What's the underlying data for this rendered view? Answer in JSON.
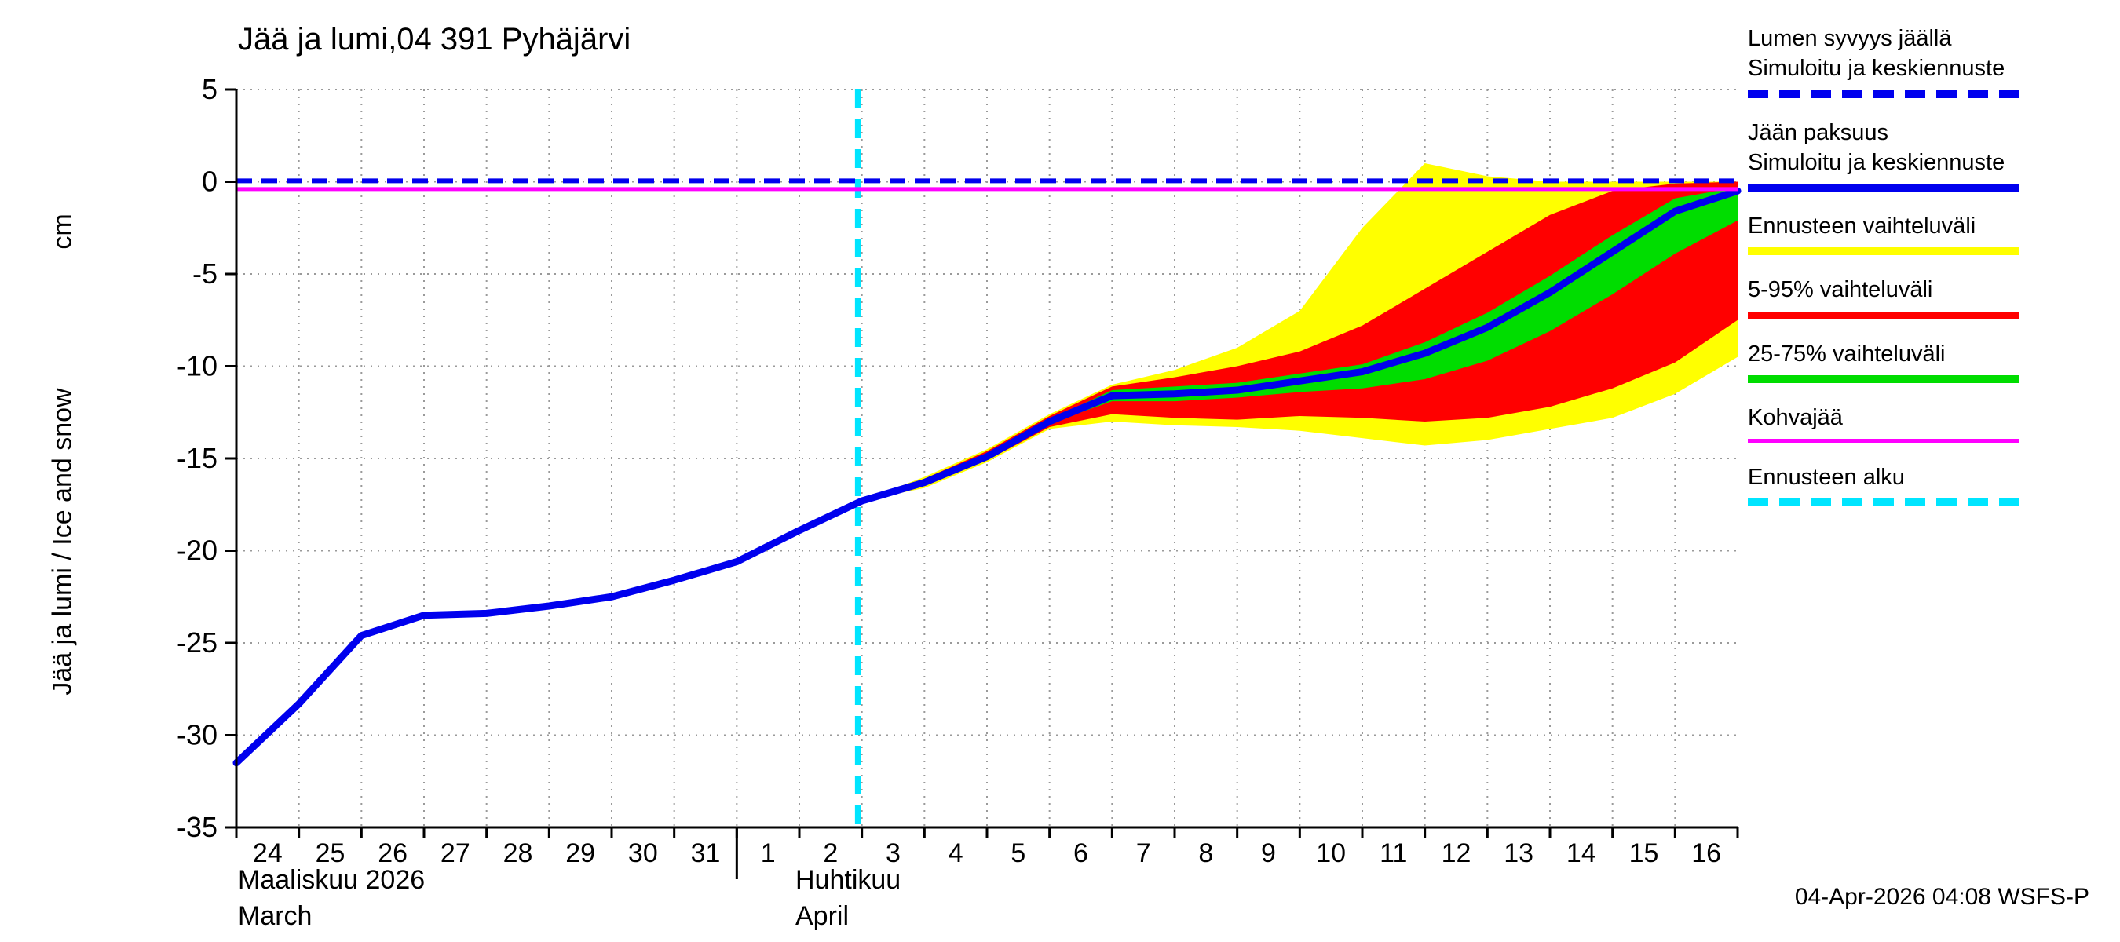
{
  "meta": {
    "title": "Jää ja lumi,04 391 Pyhäjärvi",
    "timestamp": "04-Apr-2026 04:08 WSFS-P"
  },
  "axes": {
    "y_label": "Jää ja lumi / Ice and snow",
    "y_unit": "cm",
    "y_ticks": [
      5,
      0,
      -5,
      -10,
      -15,
      -20,
      -25,
      -30,
      -35
    ],
    "x_day_labels": [
      "24",
      "25",
      "26",
      "27",
      "28",
      "29",
      "30",
      "31",
      "1",
      "2",
      "3",
      "4",
      "5",
      "6",
      "7",
      "8",
      "9",
      "10",
      "11",
      "12",
      "13",
      "14",
      "15",
      "16"
    ],
    "month_left_fi": "Maaliskuu 2026",
    "month_left_en": "March",
    "month_right_fi": "Huhtikuu",
    "month_right_en": "April"
  },
  "legend": [
    {
      "line1": "Lumen syvyys jäällä",
      "line2": "Simuloitu ja keskiennuste",
      "style": "blue-dashed"
    },
    {
      "line1": "Jään paksuus",
      "line2": "Simuloitu ja keskiennuste",
      "style": "blue-solid"
    },
    {
      "line1": "Ennusteen vaihteluväli",
      "style": "yellow-solid"
    },
    {
      "line1": "5-95% vaihteluväli",
      "style": "red-solid"
    },
    {
      "line1": "25-75% vaihteluväli",
      "style": "green-solid"
    },
    {
      "line1": "Kohvajää",
      "style": "magenta-thin"
    },
    {
      "line1": "Ennusteen alku",
      "style": "cyan-dashed"
    }
  ],
  "colors": {
    "blue": "#0000ee",
    "yellow": "#ffff00",
    "red": "#ff0000",
    "green": "#00dd00",
    "magenta": "#ff00ff",
    "cyan": "#00e5ff",
    "grid": "#9a9a9a"
  },
  "chart_data": {
    "type": "line",
    "title": "Jää ja lumi,04 391 Pyhäjärvi",
    "ylabel": "Jää ja lumi / Ice and snow (cm)",
    "ylim": [
      -35,
      5
    ],
    "x_axis_note": "day index: 0 = 24 March 2026, 24 = end of 16 April 2026",
    "forecast_start_x": 9.94,
    "snow_depth_line_y": 0.05,
    "kohvajaa_line_y": -0.4,
    "x": [
      0,
      1,
      2,
      3,
      4,
      5,
      6,
      7,
      8,
      9,
      10,
      11,
      12,
      13,
      14,
      15,
      16,
      17,
      18,
      19,
      20,
      21,
      22,
      23,
      24
    ],
    "series": [
      {
        "name": "Jään paksuus – simuloitu ja keskiennuste",
        "color": "blue",
        "values": [
          -31.5,
          -28.3,
          -24.6,
          -23.5,
          -23.4,
          -23.0,
          -22.5,
          -21.6,
          -20.6,
          -18.9,
          -17.3,
          -16.3,
          -14.9,
          -13.0,
          -11.6,
          -11.5,
          -11.3,
          -10.8,
          -10.3,
          -9.3,
          -7.9,
          -6.0,
          -3.8,
          -1.6,
          -0.5
        ]
      }
    ],
    "bands": [
      {
        "name": "Ennusteen vaihteluväli",
        "color": "yellow",
        "x": [
          10,
          11,
          12,
          13,
          14,
          15,
          16,
          17,
          18,
          19,
          20,
          21,
          22,
          23,
          24
        ],
        "top": [
          -17.3,
          -16.0,
          -14.5,
          -12.6,
          -11.0,
          -10.2,
          -9.0,
          -7.0,
          -2.5,
          1.0,
          0.3,
          0.0,
          0.0,
          0.0,
          0.0
        ],
        "bottom": [
          -17.3,
          -16.6,
          -15.2,
          -13.4,
          -13.0,
          -13.2,
          -13.3,
          -13.5,
          -13.9,
          -14.3,
          -14.0,
          -13.4,
          -12.8,
          -11.5,
          -9.5
        ]
      },
      {
        "name": "5-95% vaihteluväli",
        "color": "red",
        "x": [
          10,
          11,
          12,
          13,
          14,
          15,
          16,
          17,
          18,
          19,
          20,
          21,
          22,
          23,
          24
        ],
        "top": [
          -17.3,
          -16.1,
          -14.6,
          -12.7,
          -11.1,
          -10.6,
          -10.0,
          -9.2,
          -7.8,
          -5.8,
          -3.8,
          -1.8,
          -0.5,
          -0.1,
          0.0
        ],
        "bottom": [
          -17.3,
          -16.5,
          -15.1,
          -13.3,
          -12.6,
          -12.8,
          -12.9,
          -12.7,
          -12.8,
          -13.0,
          -12.8,
          -12.2,
          -11.2,
          -9.8,
          -7.5
        ]
      },
      {
        "name": "25-75% vaihteluväli",
        "color": "green",
        "x": [
          13,
          14,
          15,
          16,
          17,
          18,
          19,
          20,
          21,
          22,
          23,
          24
        ],
        "top": [
          -12.9,
          -11.3,
          -11.1,
          -10.9,
          -10.4,
          -9.9,
          -8.7,
          -7.1,
          -5.1,
          -2.9,
          -0.9,
          -0.3
        ],
        "bottom": [
          -13.1,
          -11.9,
          -11.9,
          -11.7,
          -11.4,
          -11.2,
          -10.7,
          -9.7,
          -8.1,
          -6.1,
          -3.9,
          -2.1
        ]
      }
    ]
  }
}
